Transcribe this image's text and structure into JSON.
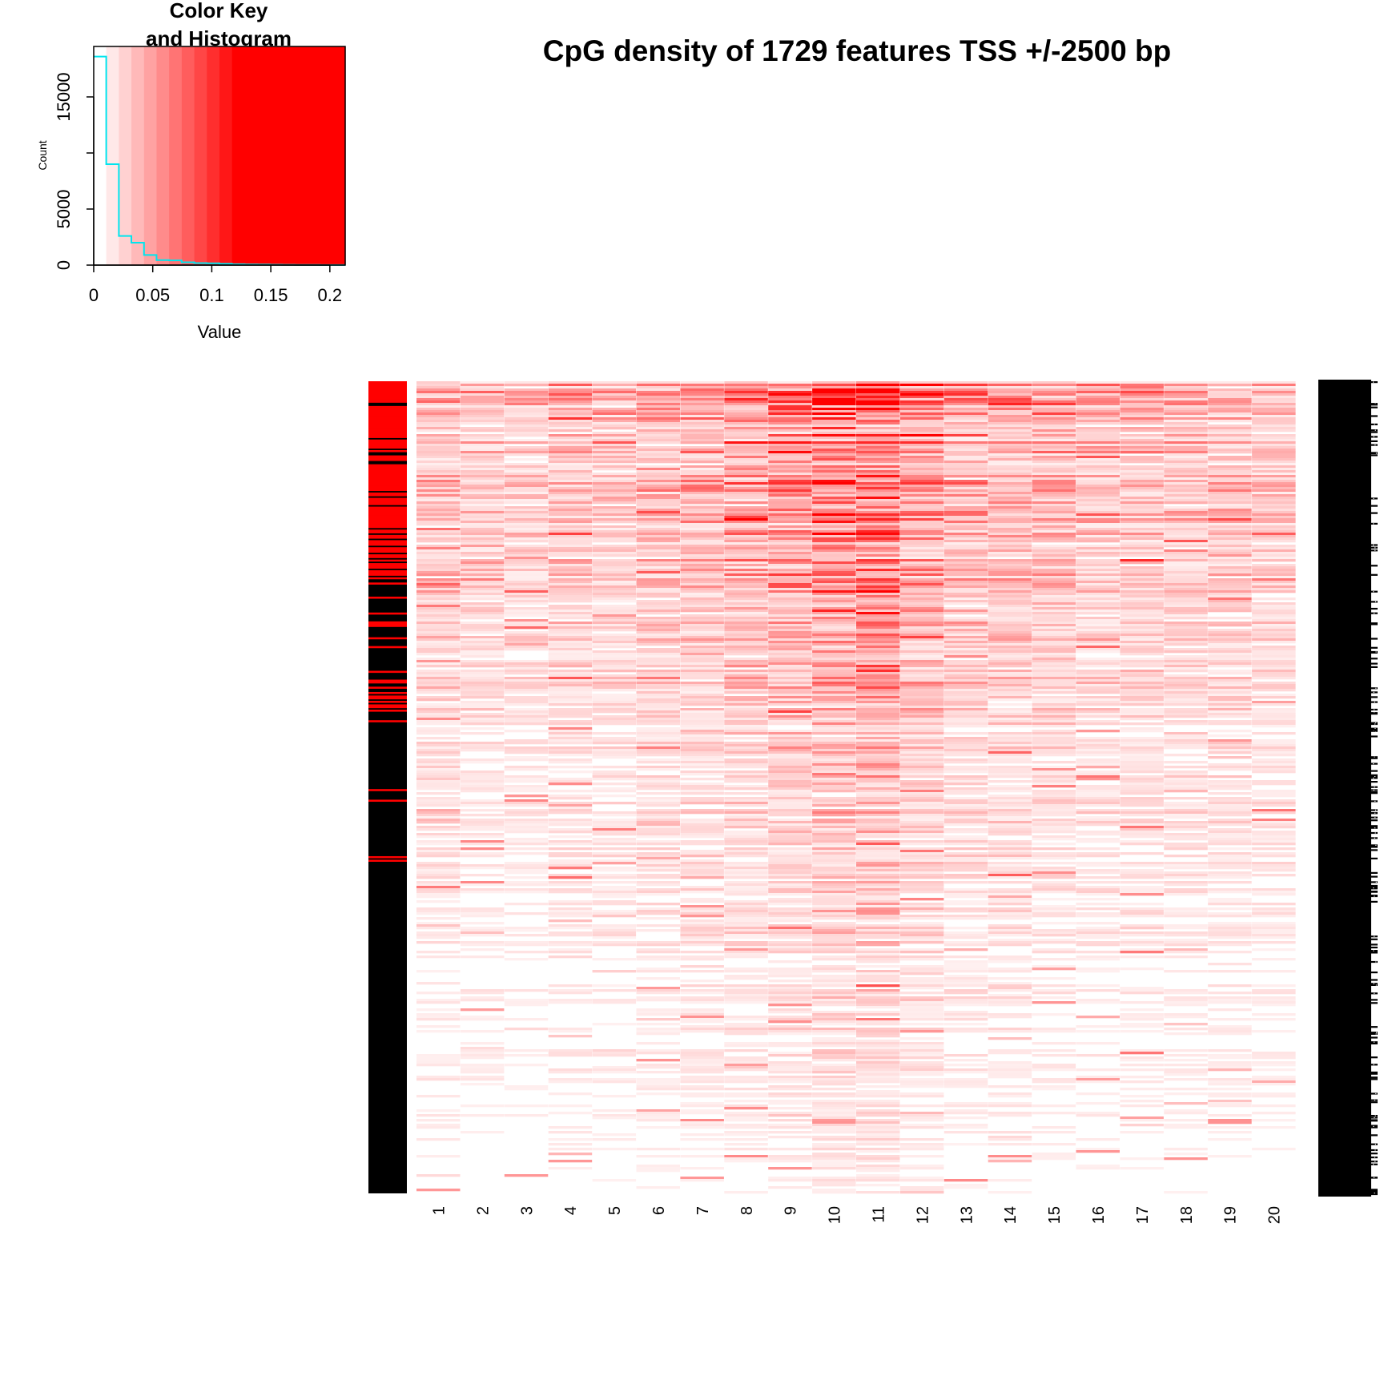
{
  "chart_data": {
    "type": "heatmap",
    "title": "CpG density of 1729 features TSS +/-2500 bp",
    "n_features": 1729,
    "columns": [
      "1",
      "2",
      "3",
      "4",
      "5",
      "6",
      "7",
      "8",
      "9",
      "10",
      "11",
      "12",
      "13",
      "14",
      "15",
      "16",
      "17",
      "18",
      "19",
      "20"
    ],
    "row_side_colors": {
      "colors": [
        "#ff0000",
        "#000000"
      ],
      "red_top_fraction": 0.23
    },
    "row_intensity_profile": {
      "stops": [
        0,
        0.1,
        0.25,
        0.45,
        0.7,
        1.0
      ],
      "levels": [
        0.62,
        0.5,
        0.38,
        0.25,
        0.15,
        0.07
      ]
    },
    "column_intensity_profile": [
      0.9,
      0.75,
      0.7,
      0.85,
      0.8,
      0.95,
      1.05,
      1.25,
      1.45,
      1.9,
      2.0,
      1.4,
      1.05,
      1.05,
      0.95,
      0.85,
      0.85,
      0.85,
      0.85,
      0.75
    ],
    "color_key": {
      "title_line1": "Color Key",
      "title_line2": "and Histogram",
      "xlabel": "Value",
      "ylabel": "Count",
      "x_ticks": [
        "0",
        "0.05",
        "0.1",
        "0.15",
        "0.2"
      ],
      "x_tick_values": [
        0,
        0.05,
        0.1,
        0.15,
        0.2
      ],
      "y_ticks": [
        "0",
        "5000",
        "15000"
      ],
      "y_tick_values": [
        0,
        5000,
        15000
      ],
      "xlim": [
        0,
        0.213
      ],
      "ylim": [
        0,
        19500
      ],
      "color_low": "#ffffff",
      "color_high": "#ff0000",
      "histogram_color": "#00e5ee",
      "color_bins": 20,
      "histogram": {
        "bin_edges": [
          0,
          0.0106,
          0.0213,
          0.0319,
          0.0426,
          0.0532,
          0.0639,
          0.0745,
          0.0852,
          0.0958,
          0.1065,
          0.1171,
          0.1278,
          0.1384,
          0.1491,
          0.1597,
          0.1704,
          0.181,
          0.1917,
          0.2023,
          0.213
        ],
        "counts": [
          18600,
          9000,
          2600,
          2000,
          900,
          450,
          420,
          250,
          180,
          160,
          120,
          80,
          60,
          50,
          40,
          30,
          20,
          15,
          10,
          5
        ]
      }
    },
    "row_labels_note": ""
  }
}
